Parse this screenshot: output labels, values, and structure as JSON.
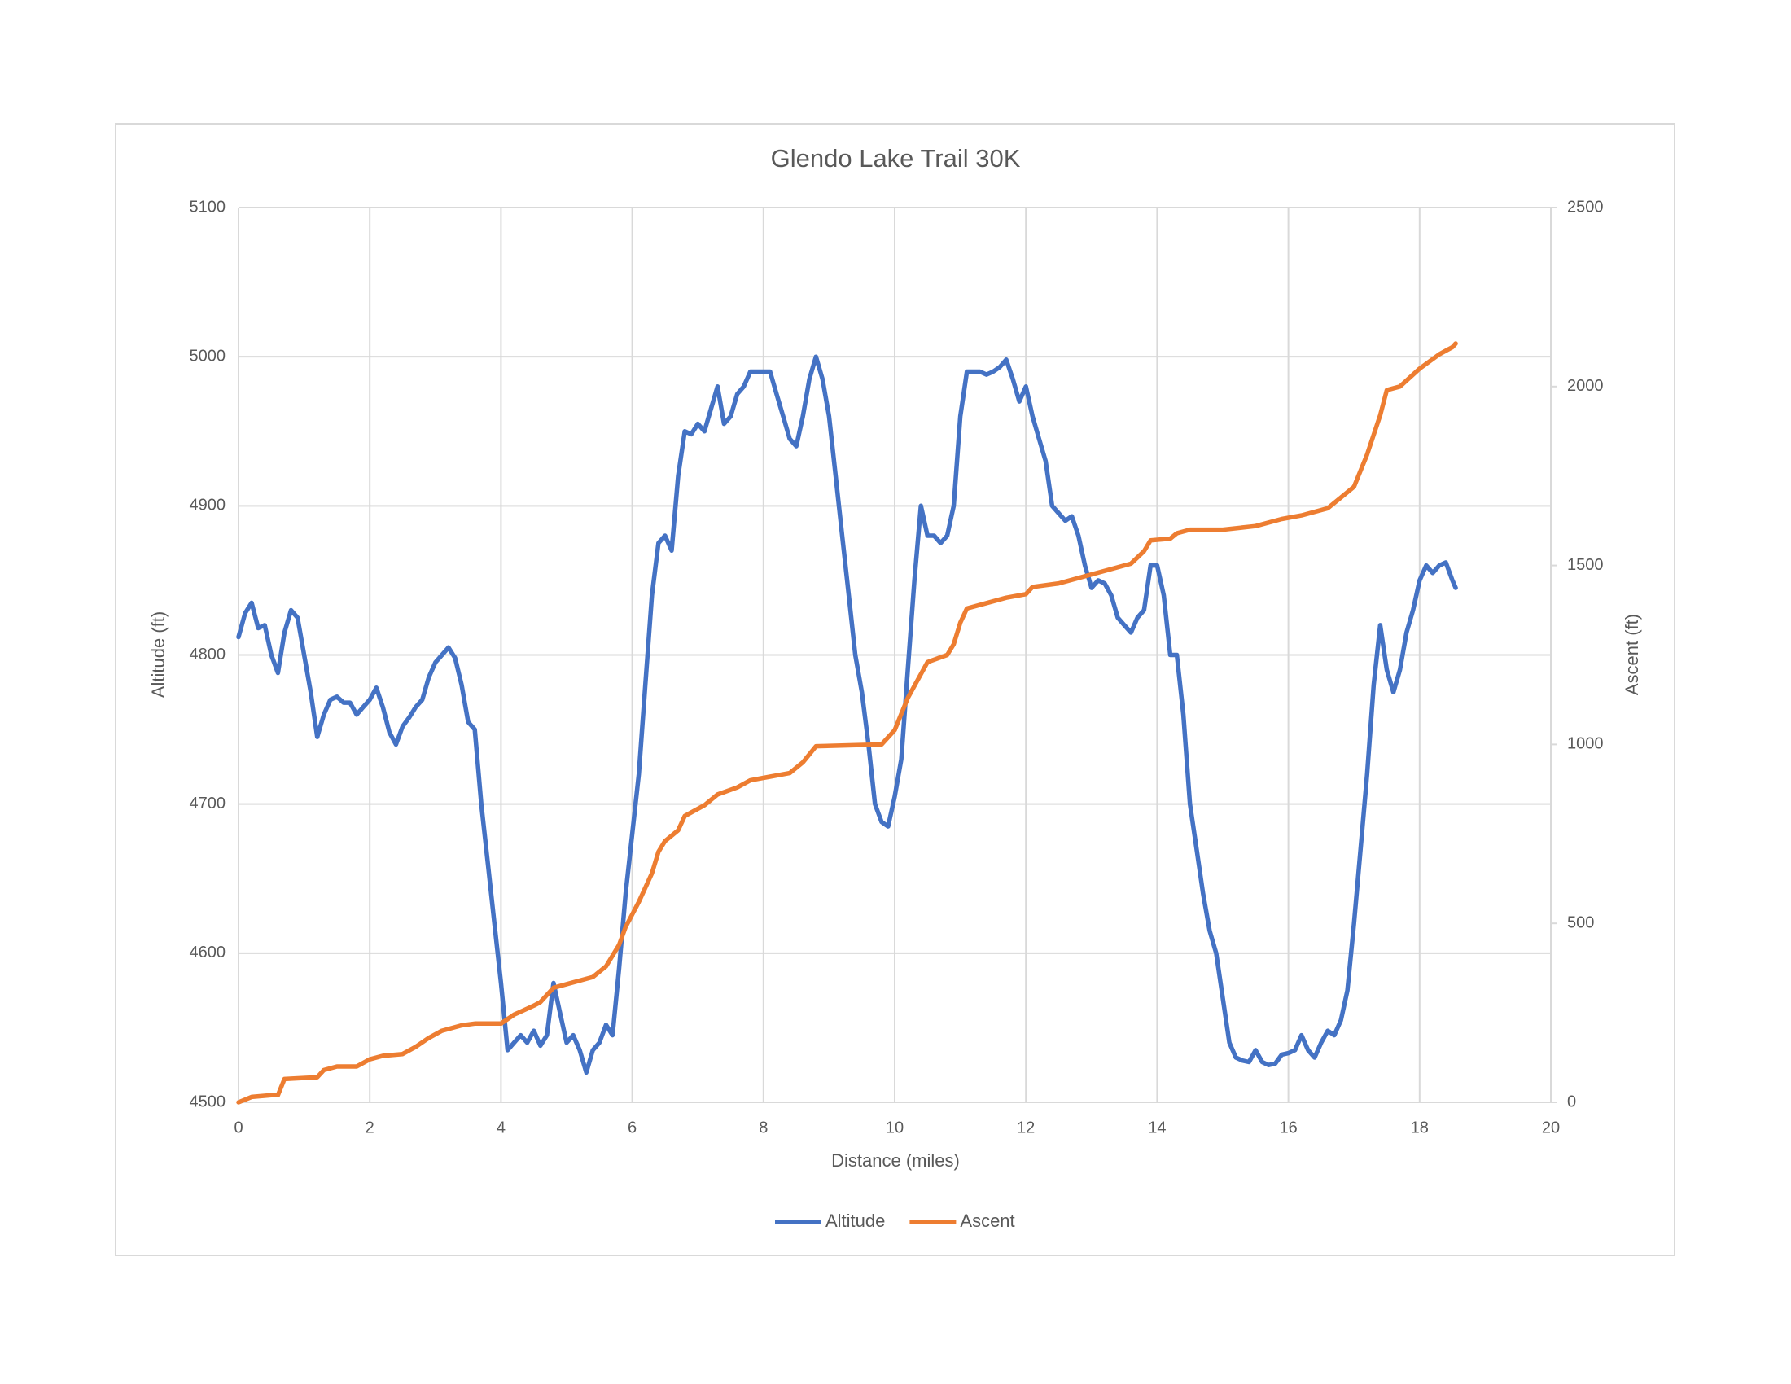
{
  "chart_data": {
    "type": "line",
    "title": "Glendo Lake Trail 30K",
    "xlabel": "Distance (miles)",
    "ylabel": "Altitude (ft)",
    "y2label": "Ascent (ft)",
    "xlim": [
      0,
      20
    ],
    "xticks": [
      0,
      2,
      4,
      6,
      8,
      10,
      12,
      14,
      16,
      18,
      20
    ],
    "ylim": [
      4500,
      5100
    ],
    "yticks": [
      4500,
      4600,
      4700,
      4800,
      4900,
      5000,
      5100
    ],
    "y2lim": [
      0,
      2500
    ],
    "y2ticks": [
      0,
      500,
      1000,
      1500,
      2000,
      2500
    ],
    "grid": true,
    "legend": "bottom",
    "series": [
      {
        "name": "Altitude",
        "color": "#4472c4",
        "x": [
          0,
          0.1,
          0.2,
          0.3,
          0.4,
          0.5,
          0.6,
          0.7,
          0.8,
          0.9,
          1.0,
          1.1,
          1.2,
          1.3,
          1.4,
          1.5,
          1.6,
          1.7,
          1.8,
          1.9,
          2.0,
          2.1,
          2.2,
          2.3,
          2.4,
          2.5,
          2.6,
          2.7,
          2.8,
          2.9,
          3.0,
          3.1,
          3.2,
          3.3,
          3.4,
          3.5,
          3.6,
          3.7,
          3.8,
          3.9,
          4.0,
          4.1,
          4.2,
          4.3,
          4.4,
          4.5,
          4.6,
          4.7,
          4.8,
          4.9,
          5.0,
          5.1,
          5.2,
          5.3,
          5.4,
          5.5,
          5.6,
          5.7,
          5.8,
          5.9,
          6.0,
          6.1,
          6.2,
          6.3,
          6.4,
          6.5,
          6.6,
          6.7,
          6.8,
          6.9,
          7.0,
          7.1,
          7.2,
          7.3,
          7.4,
          7.5,
          7.6,
          7.7,
          7.8,
          7.9,
          8.0,
          8.1,
          8.2,
          8.3,
          8.4,
          8.5,
          8.6,
          8.7,
          8.8,
          8.9,
          9.0,
          9.1,
          9.2,
          9.3,
          9.4,
          9.5,
          9.6,
          9.7,
          9.8,
          9.9,
          10.0,
          10.1,
          10.2,
          10.3,
          10.4,
          10.5,
          10.6,
          10.7,
          10.8,
          10.9,
          11.0,
          11.1,
          11.2,
          11.3,
          11.4,
          11.5,
          11.6,
          11.7,
          11.8,
          11.9,
          12.0,
          12.1,
          12.2,
          12.3,
          12.4,
          12.5,
          12.6,
          12.7,
          12.8,
          12.9,
          13.0,
          13.1,
          13.2,
          13.3,
          13.4,
          13.5,
          13.6,
          13.7,
          13.8,
          13.9,
          14.0,
          14.1,
          14.2,
          14.3,
          14.4,
          14.5,
          14.6,
          14.7,
          14.8,
          14.9,
          15.0,
          15.1,
          15.2,
          15.3,
          15.4,
          15.5,
          15.6,
          15.7,
          15.8,
          15.9,
          16.0,
          16.1,
          16.2,
          16.3,
          16.4,
          16.5,
          16.6,
          16.7,
          16.8,
          16.9,
          17.0,
          17.1,
          17.2,
          17.3,
          17.4,
          17.5,
          17.6,
          17.7,
          17.8,
          17.9,
          18.0,
          18.1,
          18.2,
          18.3,
          18.4,
          18.5,
          18.55
        ],
        "values": [
          4812,
          4828,
          4835,
          4818,
          4820,
          4800,
          4788,
          4815,
          4830,
          4825,
          4800,
          4775,
          4745,
          4760,
          4770,
          4772,
          4768,
          4768,
          4760,
          4765,
          4770,
          4778,
          4765,
          4748,
          4740,
          4752,
          4758,
          4765,
          4770,
          4785,
          4795,
          4800,
          4805,
          4798,
          4780,
          4755,
          4750,
          4700,
          4660,
          4620,
          4580,
          4535,
          4540,
          4545,
          4540,
          4548,
          4538,
          4545,
          4580,
          4560,
          4540,
          4545,
          4535,
          4520,
          4535,
          4540,
          4552,
          4545,
          4590,
          4640,
          4680,
          4720,
          4780,
          4840,
          4875,
          4880,
          4870,
          4920,
          4950,
          4948,
          4955,
          4950,
          4965,
          4980,
          4955,
          4960,
          4975,
          4980,
          4990,
          4990,
          4990,
          4990,
          4975,
          4960,
          4945,
          4940,
          4960,
          4985,
          5000,
          4985,
          4960,
          4920,
          4880,
          4840,
          4800,
          4775,
          4740,
          4700,
          4688,
          4685,
          4705,
          4730,
          4790,
          4850,
          4900,
          4880,
          4880,
          4875,
          4880,
          4900,
          4960,
          4990,
          4990,
          4990,
          4988,
          4990,
          4993,
          4998,
          4985,
          4970,
          4980,
          4960,
          4945,
          4930,
          4900,
          4895,
          4890,
          4893,
          4880,
          4860,
          4845,
          4850,
          4848,
          4840,
          4825,
          4820,
          4815,
          4825,
          4830,
          4860,
          4860,
          4840,
          4800,
          4800,
          4760,
          4700,
          4670,
          4640,
          4615,
          4600,
          4570,
          4540,
          4530,
          4528,
          4527,
          4535,
          4527,
          4525,
          4526,
          4532,
          4533,
          4535,
          4545,
          4535,
          4530,
          4540,
          4548,
          4545,
          4555,
          4575,
          4620,
          4670,
          4720,
          4780,
          4820,
          4790,
          4775,
          4790,
          4815,
          4830,
          4850,
          4860,
          4855,
          4860,
          4862,
          4850,
          4845
        ]
      },
      {
        "name": "Ascent",
        "color": "#ed7d31",
        "axis": "y2",
        "x": [
          0,
          0.2,
          0.5,
          0.6,
          0.7,
          1.2,
          1.3,
          1.5,
          1.8,
          2.0,
          2.2,
          2.5,
          2.7,
          2.9,
          3.1,
          3.4,
          3.6,
          4.0,
          4.2,
          4.5,
          4.6,
          4.8,
          5.1,
          5.4,
          5.6,
          5.8,
          5.9,
          6.1,
          6.3,
          6.4,
          6.5,
          6.7,
          6.8,
          7.1,
          7.3,
          7.6,
          7.8,
          8.1,
          8.4,
          8.6,
          8.8,
          9.8,
          10.0,
          10.2,
          10.5,
          10.8,
          10.9,
          11.0,
          11.1,
          11.4,
          11.7,
          12.0,
          12.1,
          12.5,
          12.9,
          13.3,
          13.6,
          13.8,
          13.9,
          14.2,
          14.3,
          14.5,
          15.0,
          15.5,
          15.9,
          16.2,
          16.6,
          16.8,
          17.0,
          17.2,
          17.4,
          17.5,
          17.7,
          18.0,
          18.3,
          18.5,
          18.55
        ],
        "values": [
          0,
          15,
          20,
          20,
          65,
          70,
          90,
          100,
          100,
          120,
          130,
          135,
          155,
          180,
          200,
          215,
          220,
          220,
          245,
          270,
          280,
          320,
          335,
          350,
          380,
          440,
          490,
          560,
          640,
          700,
          730,
          760,
          800,
          830,
          860,
          880,
          900,
          910,
          920,
          950,
          995,
          1000,
          1040,
          1130,
          1230,
          1250,
          1280,
          1340,
          1380,
          1395,
          1410,
          1420,
          1440,
          1450,
          1470,
          1490,
          1505,
          1540,
          1570,
          1575,
          1590,
          1600,
          1600,
          1610,
          1630,
          1640,
          1660,
          1690,
          1720,
          1810,
          1920,
          1990,
          2000,
          2050,
          2090,
          2110,
          2120
        ]
      }
    ]
  }
}
